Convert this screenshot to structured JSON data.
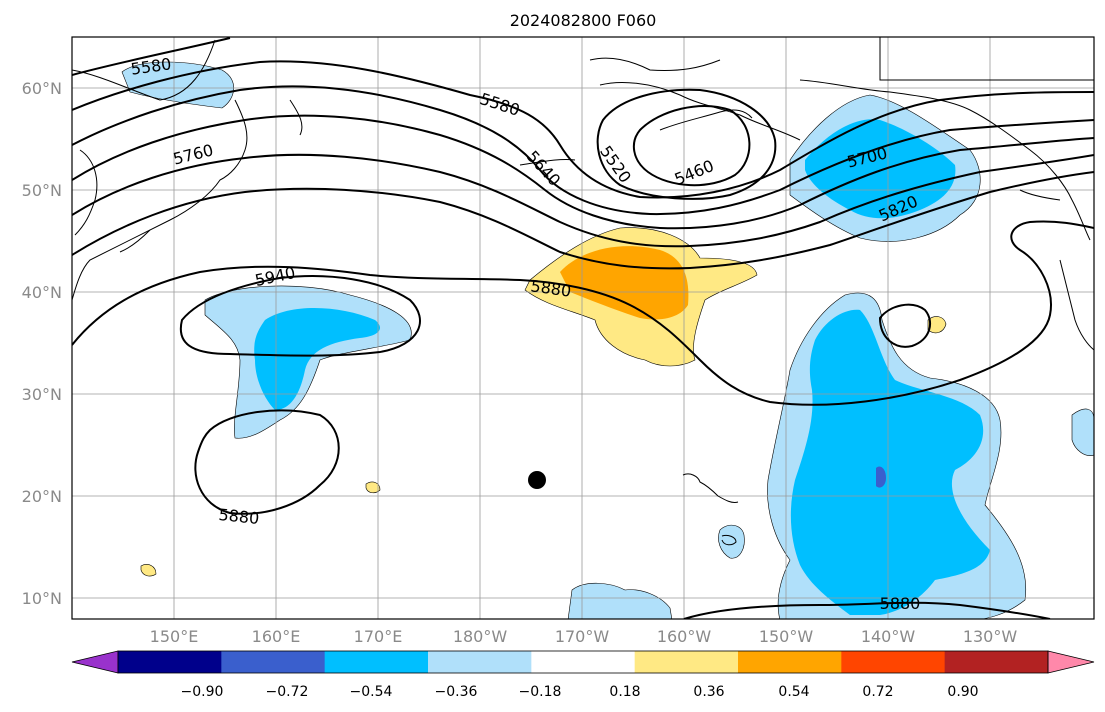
{
  "title": "2024082800 F060",
  "lat_labels": [
    "60°N",
    "50°N",
    "40°N",
    "30°N",
    "20°N",
    "10°N"
  ],
  "lon_labels": [
    "150°E",
    "160°E",
    "170°E",
    "180°W",
    "170°W",
    "160°W",
    "150°W",
    "140°W",
    "130°W"
  ],
  "contour_labels": [
    "5580",
    "5580",
    "5760",
    "5640",
    "5520",
    "5460",
    "5700",
    "5820",
    "5940",
    "5880",
    "5880",
    "5880"
  ],
  "colorbar": {
    "colors": [
      "#9932cc",
      "#00008b",
      "#3a5fcd",
      "#00bfff",
      "#b0e0fa",
      "#ffffff",
      "#ffe984",
      "#ffa500",
      "#ff4500",
      "#b22222",
      "#ff88aa"
    ],
    "tick_labels": [
      "−0.90",
      "−0.72",
      "−0.54",
      "−0.36",
      "−0.18",
      "0.18",
      "0.36",
      "0.54",
      "0.72",
      "0.90"
    ]
  },
  "marker": "filled-circle"
}
